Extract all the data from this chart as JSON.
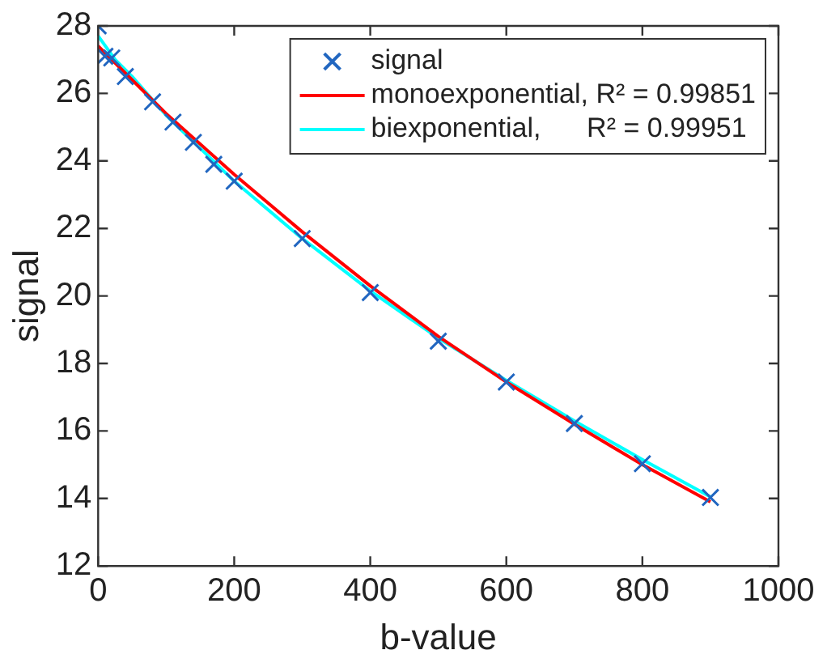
{
  "chart_data": {
    "type": "scatter",
    "xlabel": "b-value",
    "ylabel": "signal",
    "xlim": [
      0,
      1000
    ],
    "xticks": [
      0,
      200,
      400,
      600,
      800,
      1000
    ],
    "ylim": [
      12,
      28
    ],
    "yticks": [
      12,
      14,
      16,
      18,
      20,
      22,
      24,
      26,
      28
    ],
    "grid": false,
    "legend": "top right",
    "series": [
      {
        "name": "signal",
        "marker": "cross",
        "color": "#2166c0",
        "x": [
          0,
          10,
          20,
          40,
          80,
          110,
          140,
          170,
          200,
          300,
          400,
          500,
          600,
          700,
          800,
          900
        ],
        "values": [
          28.0,
          27.1,
          27.05,
          26.5,
          25.75,
          25.15,
          24.55,
          23.9,
          23.4,
          21.7,
          20.1,
          18.66,
          17.45,
          16.22,
          15.03,
          14.03
        ]
      },
      {
        "name": "monoexponential, R² = 0.99851",
        "type": "line",
        "marker": "none",
        "color": "#ff0000",
        "x": [
          0,
          50,
          100,
          200,
          300,
          400,
          500,
          600,
          700,
          800,
          900
        ],
        "values": [
          27.4,
          26.4,
          25.4,
          23.6,
          21.9,
          20.3,
          18.8,
          17.45,
          16.2,
          15.0,
          13.9
        ]
      },
      {
        "name": "biexponential,      R² = 0.99951",
        "type": "line",
        "marker": "none",
        "color": "#00ffff",
        "x": [
          0,
          25,
          50,
          100,
          200,
          300,
          400,
          500,
          600,
          700,
          800,
          900
        ],
        "values": [
          27.7,
          27.0,
          26.5,
          25.35,
          23.4,
          21.7,
          20.15,
          18.75,
          17.5,
          16.3,
          15.15,
          14.05
        ]
      }
    ]
  }
}
